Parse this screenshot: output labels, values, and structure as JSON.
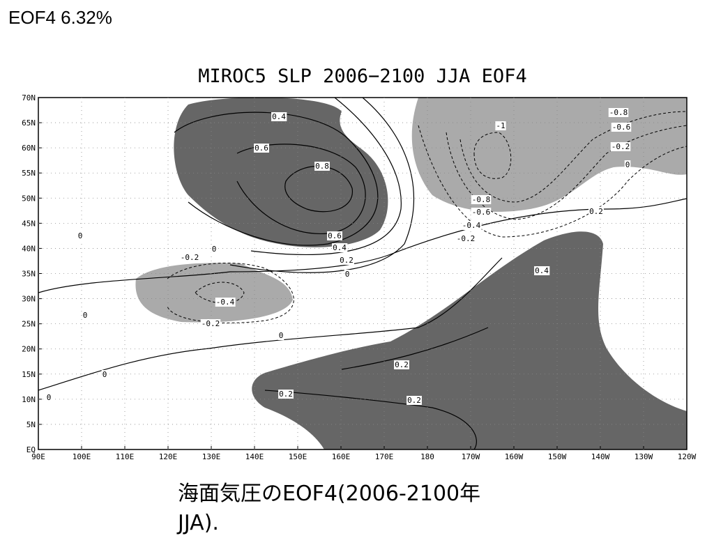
{
  "header": {
    "title": "EOF4  6.32%"
  },
  "map": {
    "title": "MIROC5 SLP 2006−2100 JJA EOF4",
    "lat_labels": [
      "70N",
      "65N",
      "60N",
      "55N",
      "50N",
      "45N",
      "40N",
      "35N",
      "30N",
      "25N",
      "20N",
      "15N",
      "10N",
      "5N",
      "EQ"
    ],
    "lon_labels": [
      "90E",
      "100E",
      "110E",
      "120E",
      "130E",
      "140E",
      "150E",
      "160E",
      "170E",
      "180",
      "170W",
      "160W",
      "150W",
      "140W",
      "130W",
      "120W"
    ],
    "contour_labels": [
      "0.4",
      "0.6",
      "0.8",
      "0.6",
      "0.4",
      "0.2",
      "0",
      "-0.2",
      "-0.4",
      "-0.2",
      "0",
      "0.2",
      "0.2",
      "0.2",
      "0",
      "0",
      "0",
      "0",
      "0",
      "-0.8",
      "-0.6",
      "-0.2",
      "-1",
      "-0.8",
      "-0.6",
      "-0.4",
      "-0.2",
      "0.2",
      "0.4",
      "0"
    ]
  },
  "caption": {
    "lines": [
      "海面気圧のEOF4(2006-2100年",
      "JJA)."
    ]
  }
}
